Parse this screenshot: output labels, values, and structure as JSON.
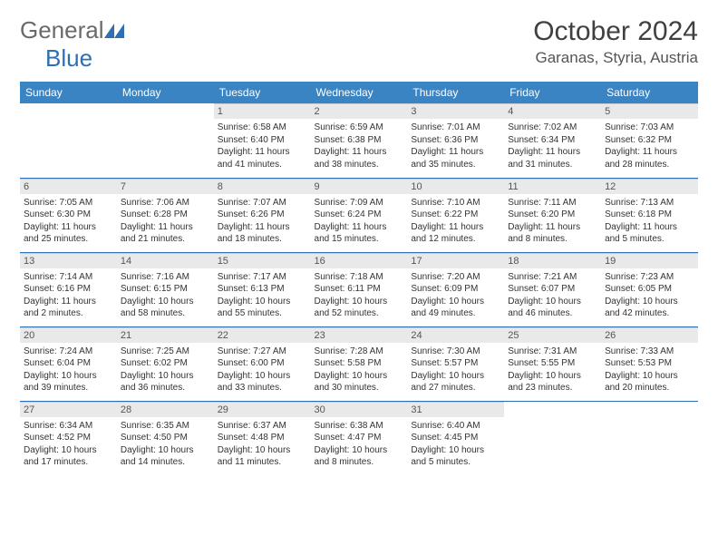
{
  "brand": {
    "part1": "General",
    "part2": "Blue"
  },
  "title": "October 2024",
  "location": "Garanas, Styria, Austria",
  "colors": {
    "header_bg": "#3b84c4",
    "header_text": "#ffffff",
    "daynum_bg": "#e9e9e9",
    "rule": "#2d6fb5",
    "brand_gray": "#6a6a6a",
    "brand_blue": "#2d6fb5"
  },
  "weekdays": [
    "Sunday",
    "Monday",
    "Tuesday",
    "Wednesday",
    "Thursday",
    "Friday",
    "Saturday"
  ],
  "weeks": [
    [
      {
        "empty": true
      },
      {
        "empty": true
      },
      {
        "day": "1",
        "sunrise": "Sunrise: 6:58 AM",
        "sunset": "Sunset: 6:40 PM",
        "daylight": "Daylight: 11 hours and 41 minutes."
      },
      {
        "day": "2",
        "sunrise": "Sunrise: 6:59 AM",
        "sunset": "Sunset: 6:38 PM",
        "daylight": "Daylight: 11 hours and 38 minutes."
      },
      {
        "day": "3",
        "sunrise": "Sunrise: 7:01 AM",
        "sunset": "Sunset: 6:36 PM",
        "daylight": "Daylight: 11 hours and 35 minutes."
      },
      {
        "day": "4",
        "sunrise": "Sunrise: 7:02 AM",
        "sunset": "Sunset: 6:34 PM",
        "daylight": "Daylight: 11 hours and 31 minutes."
      },
      {
        "day": "5",
        "sunrise": "Sunrise: 7:03 AM",
        "sunset": "Sunset: 6:32 PM",
        "daylight": "Daylight: 11 hours and 28 minutes."
      }
    ],
    [
      {
        "day": "6",
        "sunrise": "Sunrise: 7:05 AM",
        "sunset": "Sunset: 6:30 PM",
        "daylight": "Daylight: 11 hours and 25 minutes."
      },
      {
        "day": "7",
        "sunrise": "Sunrise: 7:06 AM",
        "sunset": "Sunset: 6:28 PM",
        "daylight": "Daylight: 11 hours and 21 minutes."
      },
      {
        "day": "8",
        "sunrise": "Sunrise: 7:07 AM",
        "sunset": "Sunset: 6:26 PM",
        "daylight": "Daylight: 11 hours and 18 minutes."
      },
      {
        "day": "9",
        "sunrise": "Sunrise: 7:09 AM",
        "sunset": "Sunset: 6:24 PM",
        "daylight": "Daylight: 11 hours and 15 minutes."
      },
      {
        "day": "10",
        "sunrise": "Sunrise: 7:10 AM",
        "sunset": "Sunset: 6:22 PM",
        "daylight": "Daylight: 11 hours and 12 minutes."
      },
      {
        "day": "11",
        "sunrise": "Sunrise: 7:11 AM",
        "sunset": "Sunset: 6:20 PM",
        "daylight": "Daylight: 11 hours and 8 minutes."
      },
      {
        "day": "12",
        "sunrise": "Sunrise: 7:13 AM",
        "sunset": "Sunset: 6:18 PM",
        "daylight": "Daylight: 11 hours and 5 minutes."
      }
    ],
    [
      {
        "day": "13",
        "sunrise": "Sunrise: 7:14 AM",
        "sunset": "Sunset: 6:16 PM",
        "daylight": "Daylight: 11 hours and 2 minutes."
      },
      {
        "day": "14",
        "sunrise": "Sunrise: 7:16 AM",
        "sunset": "Sunset: 6:15 PM",
        "daylight": "Daylight: 10 hours and 58 minutes."
      },
      {
        "day": "15",
        "sunrise": "Sunrise: 7:17 AM",
        "sunset": "Sunset: 6:13 PM",
        "daylight": "Daylight: 10 hours and 55 minutes."
      },
      {
        "day": "16",
        "sunrise": "Sunrise: 7:18 AM",
        "sunset": "Sunset: 6:11 PM",
        "daylight": "Daylight: 10 hours and 52 minutes."
      },
      {
        "day": "17",
        "sunrise": "Sunrise: 7:20 AM",
        "sunset": "Sunset: 6:09 PM",
        "daylight": "Daylight: 10 hours and 49 minutes."
      },
      {
        "day": "18",
        "sunrise": "Sunrise: 7:21 AM",
        "sunset": "Sunset: 6:07 PM",
        "daylight": "Daylight: 10 hours and 46 minutes."
      },
      {
        "day": "19",
        "sunrise": "Sunrise: 7:23 AM",
        "sunset": "Sunset: 6:05 PM",
        "daylight": "Daylight: 10 hours and 42 minutes."
      }
    ],
    [
      {
        "day": "20",
        "sunrise": "Sunrise: 7:24 AM",
        "sunset": "Sunset: 6:04 PM",
        "daylight": "Daylight: 10 hours and 39 minutes."
      },
      {
        "day": "21",
        "sunrise": "Sunrise: 7:25 AM",
        "sunset": "Sunset: 6:02 PM",
        "daylight": "Daylight: 10 hours and 36 minutes."
      },
      {
        "day": "22",
        "sunrise": "Sunrise: 7:27 AM",
        "sunset": "Sunset: 6:00 PM",
        "daylight": "Daylight: 10 hours and 33 minutes."
      },
      {
        "day": "23",
        "sunrise": "Sunrise: 7:28 AM",
        "sunset": "Sunset: 5:58 PM",
        "daylight": "Daylight: 10 hours and 30 minutes."
      },
      {
        "day": "24",
        "sunrise": "Sunrise: 7:30 AM",
        "sunset": "Sunset: 5:57 PM",
        "daylight": "Daylight: 10 hours and 27 minutes."
      },
      {
        "day": "25",
        "sunrise": "Sunrise: 7:31 AM",
        "sunset": "Sunset: 5:55 PM",
        "daylight": "Daylight: 10 hours and 23 minutes."
      },
      {
        "day": "26",
        "sunrise": "Sunrise: 7:33 AM",
        "sunset": "Sunset: 5:53 PM",
        "daylight": "Daylight: 10 hours and 20 minutes."
      }
    ],
    [
      {
        "day": "27",
        "sunrise": "Sunrise: 6:34 AM",
        "sunset": "Sunset: 4:52 PM",
        "daylight": "Daylight: 10 hours and 17 minutes."
      },
      {
        "day": "28",
        "sunrise": "Sunrise: 6:35 AM",
        "sunset": "Sunset: 4:50 PM",
        "daylight": "Daylight: 10 hours and 14 minutes."
      },
      {
        "day": "29",
        "sunrise": "Sunrise: 6:37 AM",
        "sunset": "Sunset: 4:48 PM",
        "daylight": "Daylight: 10 hours and 11 minutes."
      },
      {
        "day": "30",
        "sunrise": "Sunrise: 6:38 AM",
        "sunset": "Sunset: 4:47 PM",
        "daylight": "Daylight: 10 hours and 8 minutes."
      },
      {
        "day": "31",
        "sunrise": "Sunrise: 6:40 AM",
        "sunset": "Sunset: 4:45 PM",
        "daylight": "Daylight: 10 hours and 5 minutes."
      },
      {
        "empty": true
      },
      {
        "empty": true
      }
    ]
  ]
}
